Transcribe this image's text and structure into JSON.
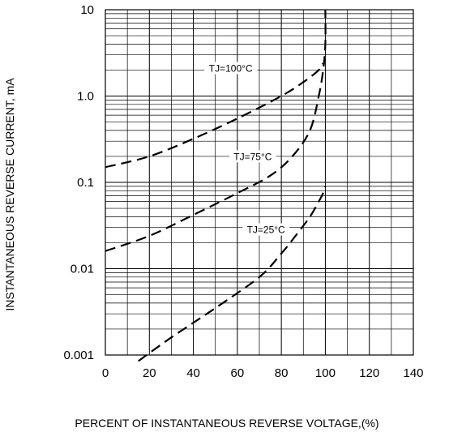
{
  "chart_data": {
    "type": "line",
    "xlabel": "PERCENT OF INSTANTANEOUS REVERSE VOLTAGE,(%)",
    "ylabel": "INSTANTANEOUS REVERSE CURRENT, mA",
    "xlim": [
      0,
      140
    ],
    "ylim": [
      0.001,
      10
    ],
    "yscale": "log",
    "x_ticks": [
      0,
      20,
      40,
      60,
      80,
      100,
      120,
      140
    ],
    "x_tick_labels": [
      "0",
      "20",
      "40",
      "60",
      "80",
      "100",
      "120",
      "140"
    ],
    "y_ticks": [
      0.001,
      0.01,
      0.1,
      1,
      10
    ],
    "y_tick_labels": [
      "0.001",
      "0.01",
      "0.1",
      "1.0",
      "10"
    ],
    "grid": true,
    "line_style": "dashed",
    "series": [
      {
        "name": "TJ=100°C",
        "label_at": [
          57,
          2.0
        ],
        "points": [
          [
            0,
            0.15
          ],
          [
            20,
            0.2
          ],
          [
            40,
            0.32
          ],
          [
            60,
            0.55
          ],
          [
            80,
            1.0
          ],
          [
            90,
            1.45
          ],
          [
            97,
            2.0
          ],
          [
            99,
            2.4
          ]
        ]
      },
      {
        "name": "TJ=75°C",
        "label_at": [
          67,
          0.19
        ],
        "points": [
          [
            0,
            0.016
          ],
          [
            20,
            0.024
          ],
          [
            40,
            0.042
          ],
          [
            60,
            0.075
          ],
          [
            75,
            0.12
          ],
          [
            85,
            0.2
          ],
          [
            93,
            0.4
          ],
          [
            97,
            1.0
          ],
          [
            99,
            2.0
          ],
          [
            100,
            4.0
          ],
          [
            100,
            10
          ]
        ]
      },
      {
        "name": "TJ=25°C",
        "label_at": [
          73,
          0.027
        ],
        "points": [
          [
            15,
            0.00085
          ],
          [
            30,
            0.0016
          ],
          [
            50,
            0.0035
          ],
          [
            70,
            0.008
          ],
          [
            80,
            0.015
          ],
          [
            87,
            0.025
          ],
          [
            93,
            0.04
          ],
          [
            97,
            0.06
          ],
          [
            99,
            0.075
          ],
          [
            100,
            0.09
          ]
        ]
      }
    ]
  }
}
